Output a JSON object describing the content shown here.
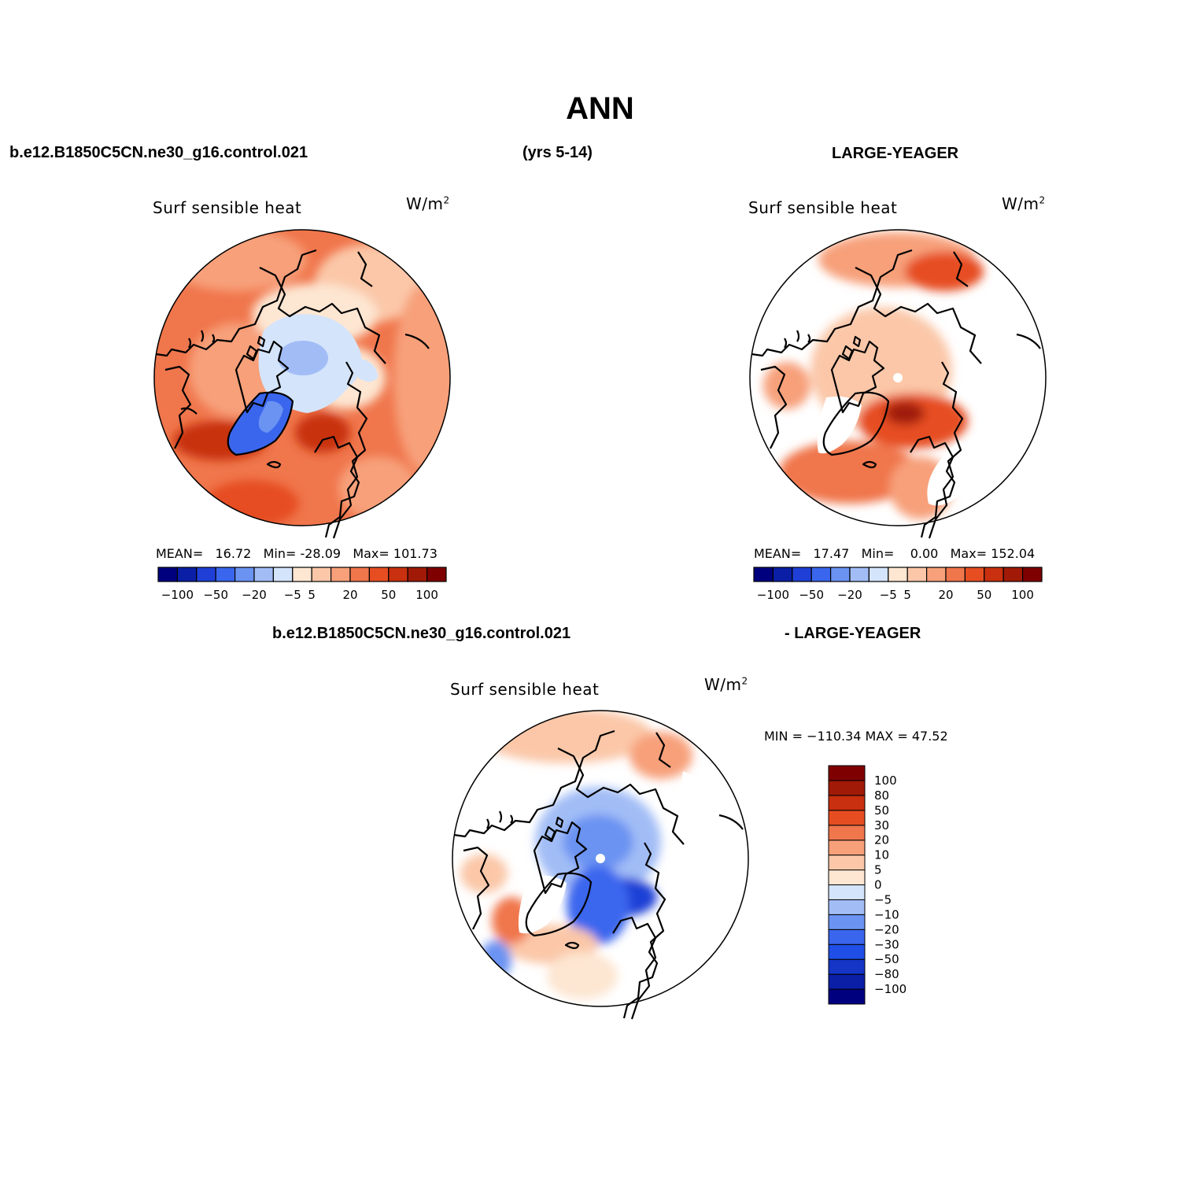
{
  "title": "ANN",
  "case1": "b.e12.B1850C5CN.ne30_g16.control.021",
  "years": "(yrs 5-14)",
  "case2": "LARGE-YEAGER",
  "diff_case1": "b.e12.B1850C5CN.ne30_g16.control.021",
  "diff_case2": "- LARGE-YEAGER",
  "panels": [
    {
      "variable": "Surf sensible heat",
      "units": "W/m",
      "units_sup": "2",
      "mean_label": "MEAN=",
      "mean": "16.72",
      "min_label": "Min=",
      "min": "-28.09",
      "max_label": "Max=",
      "max": "101.73"
    },
    {
      "variable": "Surf sensible heat",
      "units": "W/m",
      "units_sup": "2",
      "mean_label": "MEAN=",
      "mean": "17.47",
      "min_label": "Min=",
      "min": "0.00",
      "max_label": "Max=",
      "max": "152.04"
    }
  ],
  "diff_panel": {
    "variable": "Surf sensible heat",
    "units": "W/m",
    "units_sup": "2",
    "minmax": "MIN = −110.34 MAX =  47.52"
  },
  "colorbar_h": {
    "colors": [
      "#00007f",
      "#0a1fa6",
      "#1f3fd6",
      "#3a66ee",
      "#6b93f2",
      "#a2bdf6",
      "#d4e4fb",
      "#fde6d2",
      "#fbc7a8",
      "#f7a07a",
      "#f0764c",
      "#e64e22",
      "#c8300f",
      "#a11a07",
      "#7f0000"
    ],
    "ticks": [
      "−100",
      "−50",
      "−20",
      "−5",
      "5",
      "20",
      "50",
      "100"
    ]
  },
  "colorbar_v": {
    "colors": [
      "#00007f",
      "#0a1fa6",
      "#1535c6",
      "#1f4fe6",
      "#3a66ee",
      "#6b93f2",
      "#a2bdf6",
      "#d4e4fb",
      "#fde6d2",
      "#fbc7a8",
      "#f7a07a",
      "#f0764c",
      "#e64e22",
      "#c8300f",
      "#a11a07",
      "#7f0000"
    ],
    "ticks": [
      "100",
      "80",
      "50",
      "30",
      "20",
      "10",
      "5",
      "0",
      "−5",
      "−10",
      "−20",
      "−30",
      "−50",
      "−80",
      "−100"
    ]
  }
}
